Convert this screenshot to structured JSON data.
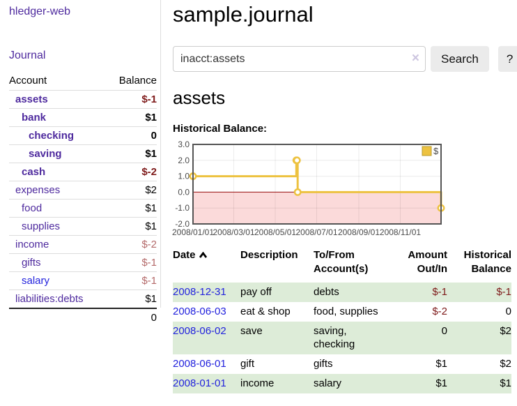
{
  "colors": {
    "link_purple": "#4e2a9e",
    "link_blue": "#2222dd",
    "negative_strong": "#7e1a1a",
    "negative_dim": "#b46a6a",
    "row_stripe_green": "#ddecd8",
    "button_bg": "#ebebeb"
  },
  "sidebar": {
    "brand": "hledger-web",
    "nav": {
      "journal": "Journal"
    },
    "accounts_table": {
      "headers": {
        "account": "Account",
        "balance": "Balance"
      },
      "rows": [
        {
          "name": "assets",
          "balance": "$-1"
        },
        {
          "name": "bank",
          "balance": "$1"
        },
        {
          "name": "checking",
          "balance": "0"
        },
        {
          "name": "saving",
          "balance": "$1"
        },
        {
          "name": "cash",
          "balance": "$-2"
        },
        {
          "name": "expenses",
          "balance": "$2"
        },
        {
          "name": "food",
          "balance": "$1"
        },
        {
          "name": "supplies",
          "balance": "$1"
        },
        {
          "name": "income",
          "balance": "$-2"
        },
        {
          "name": "gifts",
          "balance": "$-1"
        },
        {
          "name": "salary",
          "balance": "$-1"
        },
        {
          "name": "liabilities:debts",
          "balance": "$1"
        }
      ],
      "total": "0"
    }
  },
  "main": {
    "title": "sample.journal",
    "search": {
      "value": "inacct:assets",
      "clear_label": "×",
      "button": "Search",
      "help_button": "?"
    },
    "account_heading": "assets",
    "chart_label": "Historical Balance:",
    "register": {
      "headers": [
        {
          "l1": "Date",
          "l2": ""
        },
        {
          "l1": "Description",
          "l2": ""
        },
        {
          "l1": "To/From",
          "l2": "Account(s)"
        },
        {
          "l1": "Amount",
          "l2": "Out/In"
        },
        {
          "l1": "Historical",
          "l2": "Balance"
        }
      ],
      "rows": [
        {
          "date": "2008-12-31",
          "description": "pay off",
          "to_from": "debts",
          "amount": "$-1",
          "historical": "$-1"
        },
        {
          "date": "2008-06-03",
          "description": "eat & shop",
          "to_from": "food, supplies",
          "amount": "$-2",
          "historical": "0"
        },
        {
          "date": "2008-06-02",
          "description": "save",
          "to_from": "saving, checking",
          "amount": "0",
          "historical": "$2"
        },
        {
          "date": "2008-06-01",
          "description": "gift",
          "to_from": "gifts",
          "amount": "$1",
          "historical": "$2"
        },
        {
          "date": "2008-01-01",
          "description": "income",
          "to_from": "salary",
          "amount": "$1",
          "historical": "$1"
        }
      ]
    }
  },
  "chart_data": {
    "type": "line",
    "title": "Historical Balance",
    "step": true,
    "series": [
      {
        "name": "$",
        "points": [
          [
            "2008-01-01",
            1
          ],
          [
            "2008-06-01",
            2
          ],
          [
            "2008-06-02",
            2
          ],
          [
            "2008-06-03",
            0
          ],
          [
            "2008-12-31",
            -1
          ]
        ]
      }
    ],
    "xlim": [
      "2008-01-01",
      "2008-12-31"
    ],
    "ylim": [
      -2,
      3
    ],
    "y_ticks": [
      {
        "v": 3,
        "label": "3.0"
      },
      {
        "v": 2,
        "label": "2.0"
      },
      {
        "v": 1,
        "label": "1.0"
      },
      {
        "v": 0,
        "label": "0.0"
      },
      {
        "v": -1,
        "label": "-1.0"
      },
      {
        "v": -2,
        "label": "-2.0"
      }
    ],
    "x_ticks": [
      {
        "date": "2008-01-01",
        "label": "2008/01/01"
      },
      {
        "date": "2008-03-01",
        "label": "2008/03/01"
      },
      {
        "date": "2008-05-01",
        "label": "2008/05/01"
      },
      {
        "date": "2008-07-01",
        "label": "2008/07/01"
      },
      {
        "date": "2008-09-01",
        "label": "2008/09/01"
      },
      {
        "date": "2008-11-01",
        "label": "2008/11/01"
      }
    ],
    "legend": {
      "label": "$",
      "position": "top-right"
    },
    "grid": true,
    "colors": {
      "line": "#EDC240",
      "marker_fill": "#ffffff",
      "negative_region": "#fbdada",
      "zero_line": "#991111",
      "border": "#545454",
      "grid": "rgba(0,0,0,0.08)",
      "tick_text": "#4a4a4a"
    }
  }
}
